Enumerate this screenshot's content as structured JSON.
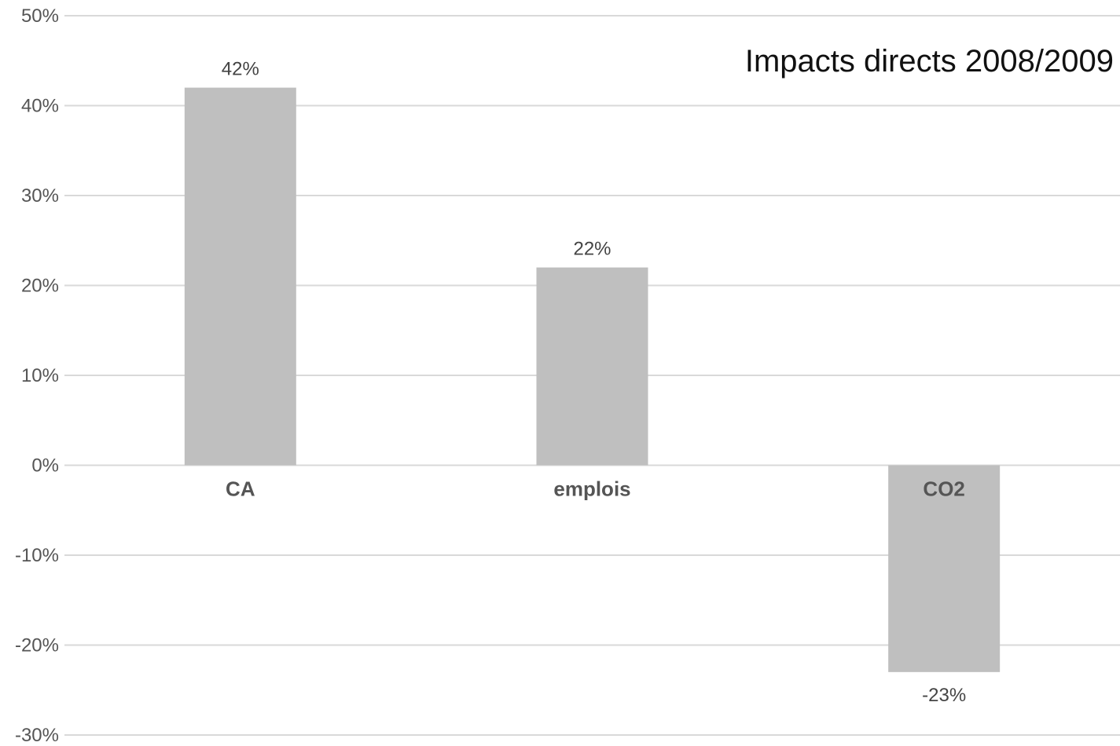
{
  "chart_data": {
    "type": "bar",
    "title": "Impacts directs 2008/2009",
    "categories": [
      "CA",
      "emplois",
      "CO2"
    ],
    "values": [
      42,
      22,
      -23
    ],
    "value_labels": [
      "42%",
      "22%",
      "-23%"
    ],
    "ylim": [
      -30,
      50
    ],
    "yticks": [
      50,
      40,
      30,
      20,
      10,
      0,
      -10,
      -20,
      -30
    ],
    "ytick_labels": [
      "50%",
      "40%",
      "30%",
      "20%",
      "10%",
      "0%",
      "-10%",
      "-20%",
      "-30%"
    ],
    "xlabel": "",
    "ylabel": "",
    "grid": true,
    "legend": "none",
    "bar_color": "#bfbfbf",
    "grid_color": "#d9d9d9"
  }
}
